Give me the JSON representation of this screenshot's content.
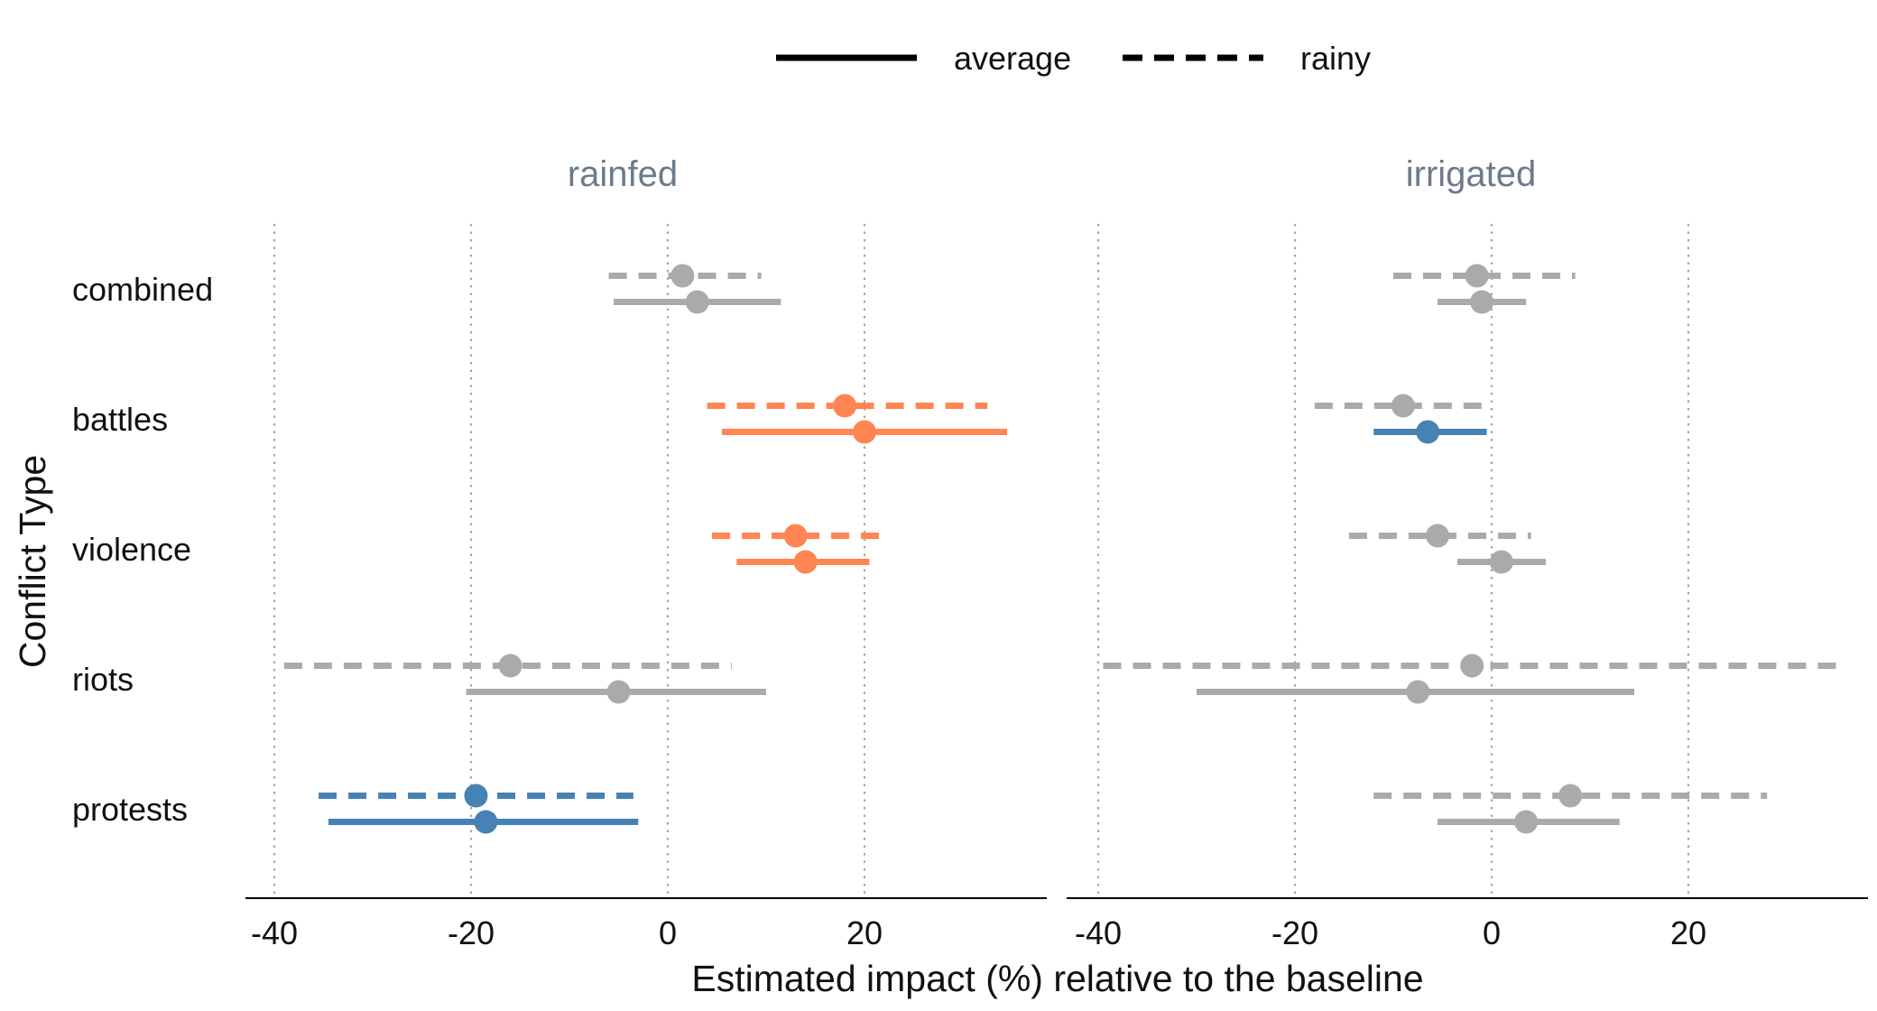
{
  "chart_data": {
    "type": "dot-and-whisker",
    "xlabel": "Estimated impact (%) relative to the baseline",
    "ylabel": "Conflict Type",
    "xlim": [
      -43,
      38
    ],
    "x_ticks": [
      -40,
      -20,
      0,
      20
    ],
    "grid": "vertical dotted",
    "legend_position": "top",
    "legend": [
      {
        "name": "average",
        "linestyle": "solid"
      },
      {
        "name": "rainy",
        "linestyle": "dashed"
      }
    ],
    "categories": [
      "combined",
      "battles",
      "violence",
      "riots",
      "protests"
    ],
    "colors": {
      "positive": "#ff8552",
      "negative": "#4682b4",
      "neutral": "#aaaaaa"
    },
    "panels": [
      {
        "title": "rainfed",
        "series": [
          {
            "name": "rainy",
            "estimates": [
              {
                "category": "combined",
                "value": 1.5,
                "low": -6,
                "high": 9.5,
                "significance": "neutral"
              },
              {
                "category": "battles",
                "value": 18,
                "low": 4,
                "high": 32.5,
                "significance": "positive"
              },
              {
                "category": "violence",
                "value": 13,
                "low": 4.5,
                "high": 22.5,
                "significance": "positive"
              },
              {
                "category": "riots",
                "value": -16,
                "low": -39,
                "high": 6.5,
                "significance": "neutral"
              },
              {
                "category": "protests",
                "value": -19.5,
                "low": -35.5,
                "high": -3.5,
                "significance": "negative"
              }
            ]
          },
          {
            "name": "average",
            "estimates": [
              {
                "category": "combined",
                "value": 3,
                "low": -5.5,
                "high": 11.5,
                "significance": "neutral"
              },
              {
                "category": "battles",
                "value": 20,
                "low": 5.5,
                "high": 34.5,
                "significance": "positive"
              },
              {
                "category": "violence",
                "value": 14,
                "low": 7,
                "high": 20.5,
                "significance": "positive"
              },
              {
                "category": "riots",
                "value": -5,
                "low": -20.5,
                "high": 10,
                "significance": "neutral"
              },
              {
                "category": "protests",
                "value": -18.5,
                "low": -34.5,
                "high": -3,
                "significance": "negative"
              }
            ]
          }
        ]
      },
      {
        "title": "irrigated",
        "series": [
          {
            "name": "rainy",
            "estimates": [
              {
                "category": "combined",
                "value": -1.5,
                "low": -10,
                "high": 8.5,
                "significance": "neutral"
              },
              {
                "category": "battles",
                "value": -9,
                "low": -18,
                "high": 0,
                "significance": "neutral"
              },
              {
                "category": "violence",
                "value": -5.5,
                "low": -14.5,
                "high": 4,
                "significance": "neutral"
              },
              {
                "category": "riots",
                "value": -2,
                "low": -39.5,
                "high": 35,
                "significance": "neutral"
              },
              {
                "category": "protests",
                "value": 8,
                "low": -12,
                "high": 28,
                "significance": "neutral"
              }
            ]
          },
          {
            "name": "average",
            "estimates": [
              {
                "category": "combined",
                "value": -1,
                "low": -5.5,
                "high": 3.5,
                "significance": "neutral"
              },
              {
                "category": "battles",
                "value": -6.5,
                "low": -12,
                "high": -0.5,
                "significance": "negative"
              },
              {
                "category": "violence",
                "value": 1,
                "low": -3.5,
                "high": 5.5,
                "significance": "neutral"
              },
              {
                "category": "riots",
                "value": -7.5,
                "low": -30,
                "high": 14.5,
                "significance": "neutral"
              },
              {
                "category": "protests",
                "value": 3.5,
                "low": -5.5,
                "high": 13,
                "significance": "neutral"
              }
            ]
          }
        ]
      }
    ]
  }
}
